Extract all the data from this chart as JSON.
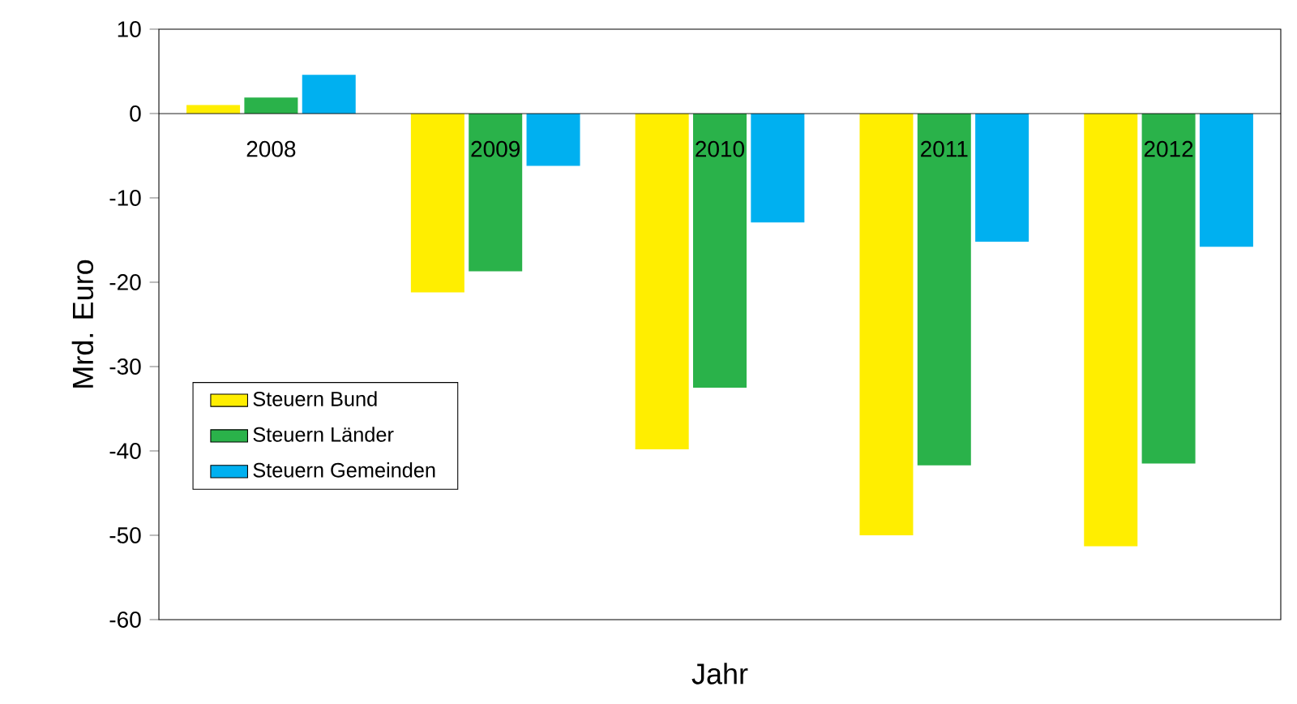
{
  "chart_data": {
    "type": "bar",
    "xlabel": "Jahr",
    "ylabel": "Mrd. Euro",
    "categories": [
      "2008",
      "2009",
      "2010",
      "2011",
      "2012"
    ],
    "series": [
      {
        "name": "Steuern Bund",
        "color": "#ffee00",
        "values": [
          1.0,
          -21.2,
          -39.8,
          -50.0,
          -51.3
        ]
      },
      {
        "name": "Steuern Länder",
        "color": "#2ab24a",
        "values": [
          1.9,
          -18.7,
          -32.5,
          -41.7,
          -41.5
        ]
      },
      {
        "name": "Steuern Gemeinden",
        "color": "#00b0f0",
        "values": [
          4.6,
          -6.2,
          -12.9,
          -15.2,
          -15.8
        ]
      }
    ],
    "ylim": [
      -60,
      10
    ],
    "yticks": [
      -60,
      -50,
      -40,
      -30,
      -20,
      -10,
      0,
      10
    ],
    "grid": false,
    "legend": "bottom left"
  }
}
